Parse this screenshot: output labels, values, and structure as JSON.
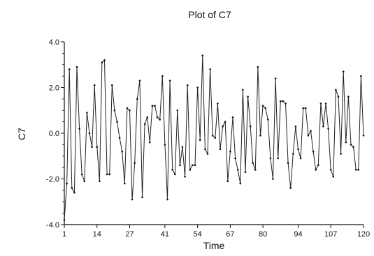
{
  "chart_data": {
    "type": "line",
    "title": "Plot of C7",
    "xlabel": "Time",
    "ylabel": "C7",
    "xlim": [
      1,
      120
    ],
    "ylim": [
      -4.0,
      4.0
    ],
    "xticks": [
      1,
      14,
      27,
      41,
      54,
      67,
      80,
      94,
      107,
      120
    ],
    "xtick_labels": [
      "1",
      "14",
      "27",
      "41",
      "54",
      "67",
      "80",
      "94",
      "107",
      "120"
    ],
    "yticks": [
      -4.0,
      -2.0,
      0.0,
      2.0,
      4.0
    ],
    "ytick_labels": [
      "-4.0",
      "-2.0",
      "0.0",
      "2.0",
      "4.0"
    ],
    "grid": false,
    "legend": "none",
    "series": [
      {
        "x": [
          1,
          2,
          3,
          4,
          5,
          6,
          7,
          8,
          9,
          10,
          11,
          12,
          13,
          14,
          15,
          16,
          17,
          18,
          19,
          20,
          21,
          22,
          23,
          24,
          25,
          26,
          27,
          28,
          29,
          30,
          31,
          32,
          33,
          34,
          35,
          36,
          37,
          38,
          39,
          40,
          41,
          42,
          43,
          44,
          45,
          46,
          47,
          48,
          49,
          50,
          51,
          52,
          53,
          54,
          55,
          56,
          57,
          58,
          59,
          60,
          61,
          62,
          63,
          64,
          65,
          66,
          67,
          68,
          69,
          70,
          71,
          72,
          73,
          74,
          75,
          76,
          77,
          78,
          79,
          80,
          81,
          82,
          83,
          84,
          85,
          86,
          87,
          88,
          89,
          90,
          91,
          92,
          93,
          94,
          95,
          96,
          97,
          98,
          99,
          100,
          101,
          102,
          103,
          104,
          105,
          106,
          107,
          108,
          109,
          110,
          111,
          112,
          113,
          114,
          115,
          116,
          117,
          118,
          119,
          120
        ],
        "values": [
          -3.8,
          -2.2,
          2.8,
          -2.4,
          -2.6,
          2.9,
          0.2,
          -1.8,
          -2.1,
          0.9,
          0.0,
          -0.6,
          2.1,
          -0.6,
          -2.1,
          3.1,
          3.2,
          -1.8,
          -1.8,
          2.1,
          1.0,
          0.5,
          -0.2,
          -0.8,
          -2.2,
          1.1,
          1.0,
          -2.9,
          -1.3,
          1.5,
          2.3,
          -2.8,
          0.4,
          0.7,
          -0.4,
          1.2,
          1.2,
          0.7,
          0.6,
          2.5,
          -0.5,
          -2.9,
          2.3,
          -1.6,
          -1.8,
          1.0,
          -1.4,
          -0.6,
          -1.9,
          2.1,
          -1.6,
          -1.4,
          -1.4,
          2.0,
          -0.3,
          3.4,
          -0.7,
          -0.9,
          2.8,
          -0.1,
          -0.2,
          1.3,
          -0.7,
          0.3,
          0.5,
          -2.1,
          -0.8,
          0.7,
          -1.1,
          -1.6,
          -2.2,
          1.9,
          -1.7,
          1.6,
          0.3,
          -1.3,
          -1.6,
          2.9,
          -0.1,
          1.2,
          1.1,
          0.6,
          -1.1,
          -2.0,
          2.4,
          -1.1,
          1.4,
          1.4,
          1.3,
          -1.3,
          -2.4,
          -0.9,
          0.3,
          -0.7,
          -1.1,
          1.1,
          1.1,
          -0.1,
          0.1,
          -0.8,
          -1.6,
          -1.4,
          1.3,
          0.3,
          1.3,
          0.2,
          -1.6,
          -1.9,
          1.9,
          1.6,
          -0.9,
          2.7,
          -0.4,
          1.6,
          -0.5,
          -0.6,
          -1.6,
          -1.6,
          2.5,
          -0.1
        ]
      }
    ]
  }
}
